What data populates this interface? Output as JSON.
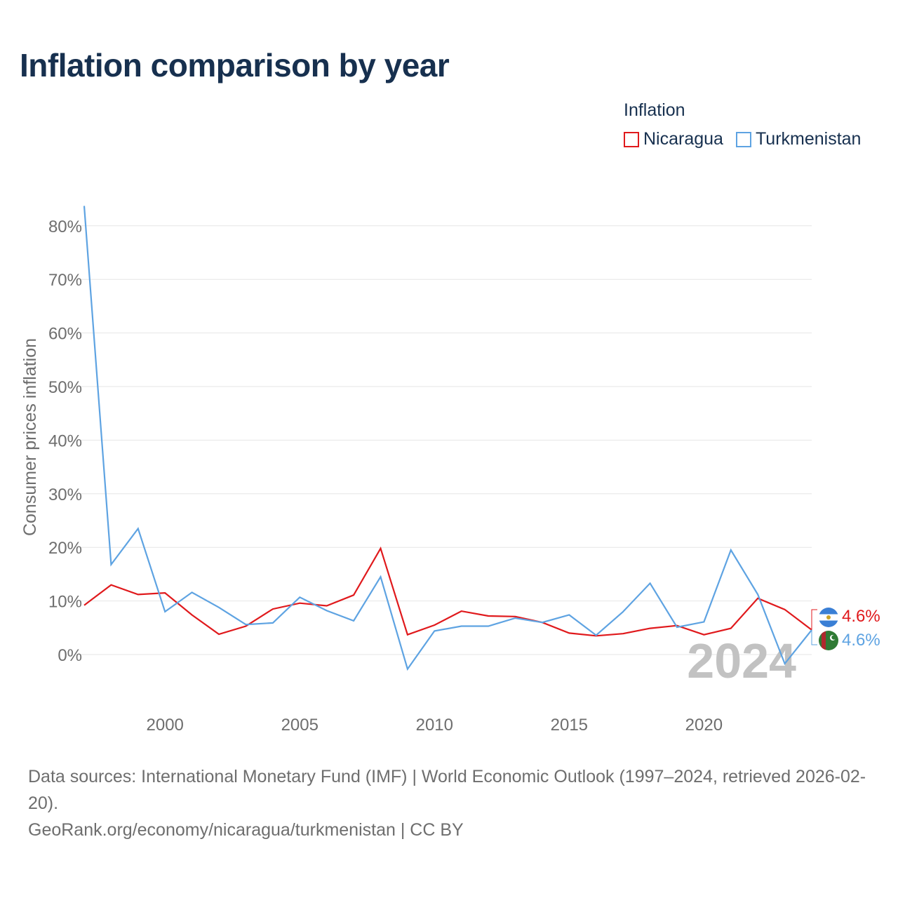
{
  "title": "Inflation comparison by year",
  "legend": {
    "title": "Inflation",
    "items": [
      {
        "label": "Nicaragua",
        "color": "#e0191c"
      },
      {
        "label": "Turkmenistan",
        "color": "#5ea3e2"
      }
    ]
  },
  "chart_data": {
    "type": "line",
    "title": "Inflation comparison by year",
    "xlabel": "",
    "ylabel": "Consumer prices inflation",
    "x": [
      1997,
      1998,
      1999,
      2000,
      2001,
      2002,
      2003,
      2004,
      2005,
      2006,
      2007,
      2008,
      2009,
      2010,
      2011,
      2012,
      2013,
      2014,
      2015,
      2016,
      2017,
      2018,
      2019,
      2020,
      2021,
      2022,
      2023,
      2024
    ],
    "xlim": [
      1997,
      2024
    ],
    "ylim": [
      -10,
      84
    ],
    "x_ticks": [
      2000,
      2005,
      2010,
      2015,
      2020
    ],
    "x_tick_labels": [
      "2000",
      "2005",
      "2010",
      "2015",
      "2020"
    ],
    "y_ticks": [
      0,
      10,
      20,
      30,
      40,
      50,
      60,
      70,
      80
    ],
    "y_tick_labels": [
      "0%",
      "10%",
      "20%",
      "30%",
      "40%",
      "50%",
      "60%",
      "70%",
      "80%"
    ],
    "grid": true,
    "series": [
      {
        "name": "Nicaragua",
        "color": "#e0191c",
        "values": [
          9.2,
          13.0,
          11.2,
          11.5,
          7.4,
          3.8,
          5.3,
          8.5,
          9.6,
          9.1,
          11.1,
          19.8,
          3.7,
          5.5,
          8.1,
          7.2,
          7.1,
          6.0,
          4.0,
          3.5,
          3.9,
          4.9,
          5.4,
          3.7,
          4.9,
          10.5,
          8.4,
          4.6
        ],
        "end_label": "4.6%"
      },
      {
        "name": "Turkmenistan",
        "color": "#5ea3e2",
        "values": [
          83.7,
          16.8,
          23.5,
          8.0,
          11.6,
          8.8,
          5.6,
          5.9,
          10.7,
          8.2,
          6.3,
          14.5,
          -2.7,
          4.4,
          5.3,
          5.3,
          6.8,
          6.0,
          7.4,
          3.6,
          8.0,
          13.3,
          5.1,
          6.1,
          19.5,
          11.2,
          -1.7,
          4.6
        ],
        "end_label": "4.6%"
      }
    ],
    "year_watermark": "2024"
  },
  "footer": {
    "sources": "Data sources: International Monetary Fund (IMF) | World Economic Outlook (1997–2024, retrieved 2026-02-20).",
    "credit": "GeoRank.org/economy/nicaragua/turkmenistan | CC BY"
  }
}
